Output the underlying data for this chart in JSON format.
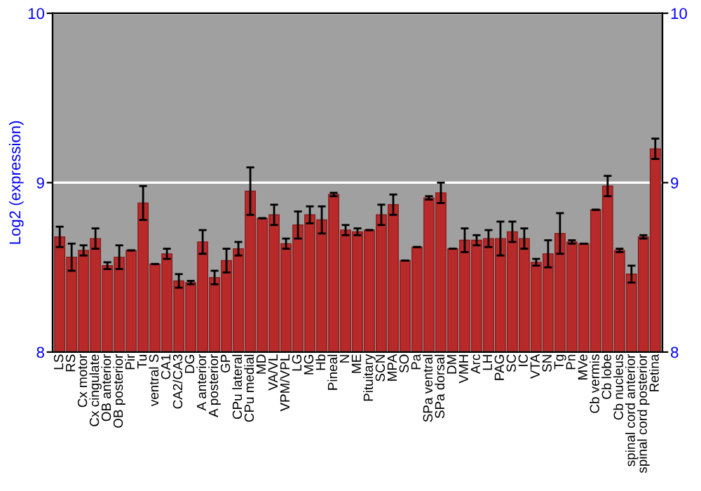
{
  "chart_data": {
    "type": "bar",
    "ylabel": "Log2 (expression)",
    "categories": [
      "LS",
      "RS",
      "Cx motor",
      "Cx cingulate",
      "OB anterior",
      "OB posterior",
      "Pir",
      "Tu",
      "ventral S",
      "CA1",
      "CA2/CA3",
      "DG",
      "A anterior",
      "A posterior",
      "GP",
      "CPu lateral",
      "CPu medial",
      "MD",
      "VA/VL",
      "VPM/VPL",
      "LG",
      "MG",
      "Hb",
      "Pineal",
      "N",
      "ME",
      "Pituitary",
      "SCN",
      "MPA",
      "SO",
      "Pa",
      "SPa ventral",
      "SPa dorsal",
      "DM",
      "VMH",
      "Arc",
      "LH",
      "PAG",
      "SC",
      "IC",
      "VTA",
      "SN",
      "Tg",
      "Pn",
      "MVe",
      "Cb vermis",
      "Cb lobe",
      "Cb nucleus",
      "spinal cord anterior",
      "spinal cord posterior",
      "Retina"
    ],
    "values": [
      8.68,
      8.56,
      8.6,
      8.67,
      8.51,
      8.56,
      8.6,
      8.88,
      8.52,
      8.58,
      8.42,
      8.41,
      8.65,
      8.44,
      8.54,
      8.61,
      8.95,
      8.79,
      8.81,
      8.64,
      8.75,
      8.81,
      8.78,
      8.93,
      8.72,
      8.71,
      8.72,
      8.81,
      8.87,
      8.54,
      8.62,
      8.91,
      8.94,
      8.61,
      8.66,
      8.66,
      8.67,
      8.67,
      8.71,
      8.67,
      8.53,
      8.58,
      8.7,
      8.65,
      8.64,
      8.84,
      8.98,
      8.6,
      8.46,
      8.68,
      9.2
    ],
    "errors": [
      0.06,
      0.08,
      0.03,
      0.06,
      0.02,
      0.07,
      null,
      0.1,
      null,
      0.03,
      0.04,
      0.01,
      0.07,
      0.04,
      0.07,
      0.04,
      0.14,
      null,
      0.06,
      0.03,
      0.08,
      0.05,
      0.08,
      0.01,
      0.03,
      0.02,
      null,
      0.06,
      0.06,
      null,
      null,
      0.01,
      0.06,
      null,
      0.07,
      0.03,
      0.05,
      0.1,
      0.06,
      0.06,
      0.02,
      0.08,
      0.12,
      0.01,
      null,
      null,
      0.06,
      0.01,
      0.05,
      0.01,
      0.06
    ],
    "color": "#b82a2a",
    "ylim": [
      8,
      10
    ],
    "yticks": [
      8,
      9,
      10
    ],
    "y2lim": [
      8,
      10
    ],
    "y2ticks": [
      8,
      9,
      10
    ],
    "grid": "y"
  }
}
